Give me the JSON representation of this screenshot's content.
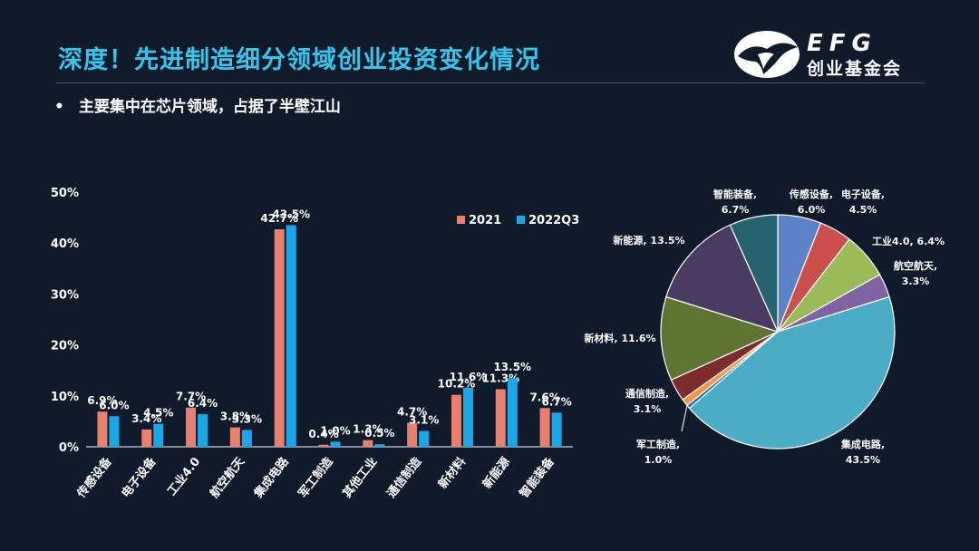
{
  "slide": {
    "title": "深度！先进制造细分领域创业投资变化情况",
    "bullet": "主要集中在芯片领域，占据了半壁江山"
  },
  "logo": {
    "brand": "EFG",
    "subtitle": "创业基金会"
  },
  "colors": {
    "series_2021": "#e9806e",
    "series_2022q3": "#1aa7e8",
    "title": "#33c6ec"
  },
  "chart_data": [
    {
      "type": "bar",
      "categories": [
        "传感设备",
        "电子设备",
        "工业4.0",
        "航空航天",
        "集成电路",
        "军工制造",
        "其他工业",
        "通信制造",
        "新材料",
        "新能源",
        "智能装备"
      ],
      "series": [
        {
          "name": "2021",
          "values": [
            6.9,
            3.4,
            7.7,
            3.8,
            42.7,
            0.4,
            1.3,
            4.7,
            10.2,
            11.3,
            7.6
          ],
          "labels": [
            "6.9%",
            "3.4%",
            "7.7%",
            "3.8%",
            "42.7%",
            "0.4%",
            "1.3%",
            "4.7%",
            "10.2%",
            "11.3%",
            "7.6%"
          ]
        },
        {
          "name": "2022Q3",
          "values": [
            6.0,
            4.5,
            6.4,
            3.3,
            43.5,
            1.0,
            0.5,
            3.1,
            11.6,
            13.5,
            6.7
          ],
          "labels": [
            "6.0%",
            "4.5%",
            "6.4%",
            "3.3%",
            "43.5%",
            "1.0%",
            "0.5%",
            "3.1%",
            "11.6%",
            "13.5%",
            "6.7%"
          ]
        }
      ],
      "yticks": [
        "0%",
        "10%",
        "20%",
        "30%",
        "40%",
        "50%"
      ],
      "ylim": [
        0,
        50
      ],
      "legend": "top-right"
    },
    {
      "type": "pie",
      "slices": [
        {
          "name": "传感设备",
          "value": 6.0,
          "label": "传感设备,\n6.0%",
          "color": "#5b82c8"
        },
        {
          "name": "电子设备",
          "value": 4.5,
          "label": "电子设备,\n4.5%",
          "color": "#cd4f4d"
        },
        {
          "name": "工业4.0",
          "value": 6.4,
          "label": "工业4.0, 6.4%",
          "color": "#9bbb59"
        },
        {
          "name": "航空航天",
          "value": 3.3,
          "label": "航空航天,\n3.3%",
          "color": "#8064a2"
        },
        {
          "name": "集成电路",
          "value": 43.5,
          "label": "集成电路,\n43.5%",
          "color": "#4bacc6"
        },
        {
          "name": "其他工业",
          "value": 0.5,
          "label": "",
          "color": "#1f6fb5"
        },
        {
          "name": "军工制造",
          "value": 1.0,
          "label": "军工制造,\n1.0%",
          "color": "#f79646"
        },
        {
          "name": "通信制造",
          "value": 3.1,
          "label": "通信制造,\n3.1%",
          "color": "#7b2c2b"
        },
        {
          "name": "新材料",
          "value": 11.6,
          "label": "新材料, 11.6%",
          "color": "#5e7532"
        },
        {
          "name": "新能源",
          "value": 13.5,
          "label": "新能源, 13.5%",
          "color": "#4a3b62"
        },
        {
          "name": "智能装备",
          "value": 6.7,
          "label": "智能装备,\n6.7%",
          "color": "#25636e"
        }
      ]
    }
  ]
}
